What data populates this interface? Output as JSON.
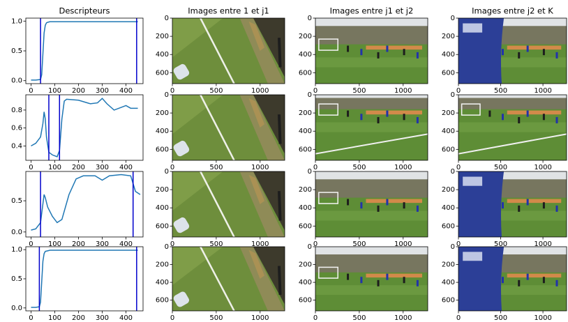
{
  "chart_data": [
    {
      "type": "line",
      "title": "Descripteurs",
      "x": [
        0,
        20,
        40,
        45,
        50,
        55,
        60,
        65,
        70,
        80,
        100,
        200,
        300,
        400,
        450
      ],
      "values": [
        0.01,
        0.01,
        0.02,
        0.1,
        0.45,
        0.8,
        0.93,
        0.97,
        0.98,
        0.99,
        0.99,
        0.99,
        0.99,
        0.99,
        0.99
      ],
      "color": "#1f77b4",
      "vlines": [
        40,
        445
      ],
      "vline_color": "#0000cc",
      "xlim": [
        -22,
        472
      ],
      "ylim": [
        -0.05,
        1.05
      ],
      "xticks": [
        0,
        100,
        200,
        300,
        400
      ],
      "yticks": [
        {
          "value": 0,
          "label": "0.0"
        },
        0.5,
        {
          "value": 1,
          "label": "1.0"
        }
      ]
    },
    {
      "type": "image",
      "xlim": [
        0,
        1280
      ],
      "ylim": [
        720,
        0
      ],
      "xticks": [
        0,
        500,
        1000
      ],
      "yticks": [
        0,
        200,
        400,
        600
      ],
      "title": "Images entre 1 et j1"
    },
    {
      "type": "image",
      "xlim": [
        0,
        1280
      ],
      "ylim": [
        720,
        0
      ],
      "xticks": [
        0,
        500,
        1000
      ],
      "yticks": [
        0,
        200,
        400,
        600
      ],
      "title": "Images entre j1 et j2"
    },
    {
      "type": "image",
      "xlim": [
        0,
        1280
      ],
      "ylim": [
        720,
        0
      ],
      "xticks": [
        0,
        500,
        1000
      ],
      "yticks": [
        0,
        200,
        400,
        600
      ],
      "title": "Images entre j2 et K"
    },
    {
      "type": "line",
      "x": [
        0,
        20,
        40,
        50,
        55,
        60,
        65,
        75,
        90,
        110,
        120,
        130,
        140,
        150,
        200,
        250,
        280,
        300,
        320,
        350,
        380,
        400,
        420,
        450
      ],
      "values": [
        0.4,
        0.43,
        0.5,
        0.65,
        0.78,
        0.7,
        0.5,
        0.33,
        0.3,
        0.28,
        0.35,
        0.7,
        0.9,
        0.92,
        0.91,
        0.87,
        0.88,
        0.93,
        0.87,
        0.8,
        0.83,
        0.85,
        0.82,
        0.82
      ],
      "color": "#1f77b4",
      "vlines": [
        75,
        120
      ],
      "vline_color": "#0000cc",
      "xlim": [
        -22,
        472
      ],
      "ylim": [
        0.24,
        0.97
      ],
      "xticks": [
        0,
        100,
        200,
        300,
        400
      ],
      "yticks": [
        0.4,
        0.6,
        0.8
      ]
    },
    {
      "type": "image",
      "xlim": [
        0,
        1280
      ],
      "ylim": [
        720,
        0
      ],
      "xticks": [
        0,
        500,
        1000
      ],
      "yticks": [
        0,
        200,
        400,
        600
      ]
    },
    {
      "type": "image",
      "xlim": [
        0,
        1280
      ],
      "ylim": [
        720,
        0
      ],
      "xticks": [
        0,
        500,
        1000
      ],
      "yticks": [
        0,
        200,
        400,
        600
      ]
    },
    {
      "type": "image",
      "xlim": [
        0,
        1280
      ],
      "ylim": [
        720,
        0
      ],
      "xticks": [
        0,
        500,
        1000
      ],
      "yticks": [
        0,
        200,
        400,
        600
      ]
    },
    {
      "type": "line",
      "x": [
        0,
        20,
        40,
        50,
        55,
        60,
        70,
        90,
        110,
        130,
        160,
        190,
        220,
        270,
        300,
        330,
        380,
        420,
        440,
        460
      ],
      "values": [
        0.03,
        0.05,
        0.15,
        0.45,
        0.6,
        0.55,
        0.4,
        0.25,
        0.15,
        0.2,
        0.6,
        0.85,
        0.9,
        0.9,
        0.83,
        0.9,
        0.92,
        0.9,
        0.65,
        0.6
      ],
      "color": "#1f77b4",
      "vlines": [
        40,
        430
      ],
      "vline_color": "#0000cc",
      "xlim": [
        -22,
        472
      ],
      "ylim": [
        -0.08,
        0.97
      ],
      "xticks": [
        0,
        100,
        200,
        300,
        400
      ],
      "yticks": [
        {
          "value": 0,
          "label": "0.0"
        },
        0.5
      ]
    },
    {
      "type": "image",
      "xlim": [
        0,
        1280
      ],
      "ylim": [
        720,
        0
      ],
      "xticks": [
        0,
        500,
        1000
      ],
      "yticks": [
        0,
        200,
        400,
        600
      ]
    },
    {
      "type": "image",
      "xlim": [
        0,
        1280
      ],
      "ylim": [
        720,
        0
      ],
      "xticks": [
        0,
        500,
        1000
      ],
      "yticks": [
        0,
        200,
        400,
        600
      ]
    },
    {
      "type": "image",
      "xlim": [
        0,
        1280
      ],
      "ylim": [
        720,
        0
      ],
      "xticks": [
        0,
        500,
        1000
      ],
      "yticks": [
        0,
        200,
        400,
        600
      ]
    },
    {
      "type": "line",
      "x": [
        0,
        20,
        35,
        40,
        45,
        50,
        55,
        60,
        70,
        80,
        100,
        200,
        300,
        400,
        450
      ],
      "values": [
        0.01,
        0.01,
        0.02,
        0.1,
        0.45,
        0.8,
        0.93,
        0.97,
        0.98,
        0.99,
        0.99,
        0.99,
        0.99,
        0.99,
        0.99
      ],
      "color": "#1f77b4",
      "vlines": [
        35,
        445
      ],
      "vline_color": "#0000cc",
      "xlim": [
        -22,
        472
      ],
      "ylim": [
        -0.05,
        1.05
      ],
      "xticks": [
        0,
        100,
        200,
        300,
        400
      ],
      "yticks": [
        {
          "value": 0,
          "label": "0.0"
        },
        0.5,
        {
          "value": 1,
          "label": "1.0"
        }
      ]
    },
    {
      "type": "image",
      "xlim": [
        0,
        1280
      ],
      "ylim": [
        720,
        0
      ],
      "xticks": [
        0,
        500,
        1000
      ],
      "yticks": [
        0,
        200,
        400,
        600
      ]
    },
    {
      "type": "image",
      "xlim": [
        0,
        1280
      ],
      "ylim": [
        720,
        0
      ],
      "xticks": [
        0,
        500,
        1000
      ],
      "yticks": [
        0,
        200,
        400,
        600
      ]
    },
    {
      "type": "image",
      "xlim": [
        0,
        1280
      ],
      "ylim": [
        720,
        0
      ],
      "xticks": [
        0,
        500,
        1000
      ],
      "yticks": [
        0,
        200,
        400,
        600
      ]
    }
  ]
}
